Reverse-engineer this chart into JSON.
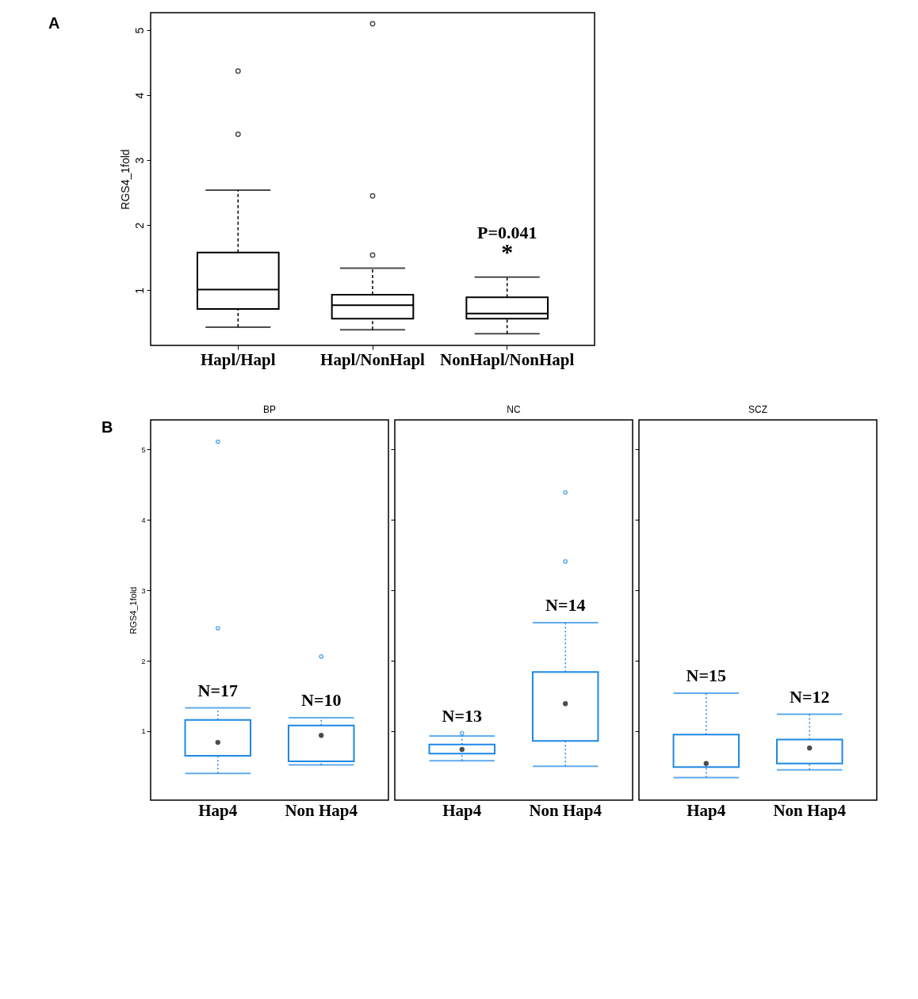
{
  "chart_data": [
    {
      "type": "box",
      "title": "A",
      "ylabel": "RGS4_1fold",
      "categories": [
        "Hapl/Hapl",
        "Hapl/NonHapl",
        "NonHapl/NonHapl"
      ],
      "ylim": [
        0.15,
        5.27
      ],
      "yticks": [
        1,
        2,
        3,
        4,
        5
      ],
      "grid": false,
      "line_style": "dashed",
      "series": [
        {
          "color": "#000000",
          "boxes": [
            {
              "low": 0.43,
              "q1": 0.71,
              "median": 1.01,
              "q3": 1.58,
              "high": 2.54,
              "outliers": [
                3.4,
                4.37
              ]
            },
            {
              "low": 0.39,
              "q1": 0.56,
              "median": 0.77,
              "q3": 0.93,
              "high": 1.34,
              "outliers": [
                1.54,
                2.45,
                5.1
              ]
            },
            {
              "low": 0.33,
              "q1": 0.56,
              "median": 0.64,
              "q3": 0.89,
              "high": 1.2
            }
          ]
        }
      ],
      "annotations": [
        {
          "text": "P=0.041",
          "x": "NonHapl/NonHapl",
          "y": 1.2
        },
        {
          "text": "*",
          "x": "NonHapl/NonHapl",
          "y": 1.2
        }
      ]
    },
    {
      "type": "box",
      "title": "BP",
      "ylabel": "RGS4_1fold",
      "categories": [
        "Hap4",
        "Non Hap4"
      ],
      "ylim": [
        0.02,
        5.42
      ],
      "yticks": [
        1,
        2,
        3,
        4,
        5
      ],
      "grid": false,
      "line_style": "dotted",
      "marker": "circle",
      "series": [
        {
          "color": "#1e88e5",
          "boxes": [
            {
              "low": 0.4,
              "q1": 0.65,
              "median": 0.84,
              "q3": 1.16,
              "high": 1.33,
              "outliers": [
                2.46,
                5.11
              ]
            },
            {
              "low": 0.52,
              "q1": 0.57,
              "median": 0.94,
              "q3": 1.08,
              "high": 1.19,
              "outliers": [
                2.06
              ]
            }
          ]
        }
      ],
      "annotations": [
        "B",
        {
          "text": "N=17",
          "x": "Hap4",
          "y": 1.33
        },
        {
          "text": "N=10",
          "x": "Non Hap4",
          "y": 1.19
        }
      ]
    },
    {
      "type": "box",
      "title": "NC",
      "categories": [
        "Hap4",
        "Non Hap4"
      ],
      "ylim": [
        0.02,
        5.42
      ],
      "yticks": [
        1,
        2,
        3,
        4,
        5
      ],
      "tick_labels": "x",
      "grid": false,
      "line_style": "dotted",
      "marker": "circle",
      "series": [
        {
          "color": "#1e88e5",
          "boxes": [
            {
              "low": 0.58,
              "q1": 0.68,
              "median": 0.74,
              "q3": 0.81,
              "high": 0.93,
              "outliers": [
                0.97
              ]
            },
            {
              "low": 0.5,
              "q1": 0.86,
              "median": 1.39,
              "q3": 1.84,
              "high": 2.54,
              "outliers": [
                3.41,
                4.39
              ]
            }
          ]
        }
      ],
      "annotations": [
        {
          "text": "N=13",
          "x": "Hap4",
          "y": 0.97
        },
        {
          "text": "N=14",
          "x": "Non Hap4",
          "y": 2.54
        }
      ]
    },
    {
      "type": "box",
      "title": "SCZ",
      "categories": [
        "Hap4",
        "Non Hap4"
      ],
      "ylim": [
        0.02,
        5.42
      ],
      "yticks": [
        1,
        2,
        3,
        4,
        5
      ],
      "tick_labels": "x",
      "grid": false,
      "line_style": "dotted",
      "marker": "circle",
      "series": [
        {
          "color": "#1e88e5",
          "boxes": [
            {
              "low": 0.34,
              "q1": 0.49,
              "median": 0.54,
              "q3": 0.95,
              "high": 1.54
            },
            {
              "low": 0.45,
              "q1": 0.54,
              "median": 0.76,
              "q3": 0.88,
              "high": 1.24
            }
          ]
        }
      ],
      "annotations": [
        {
          "text": "N=15",
          "x": "Hap4",
          "y": 1.54
        },
        {
          "text": "N=12",
          "x": "Non Hap4",
          "y": 1.24
        }
      ]
    }
  ]
}
